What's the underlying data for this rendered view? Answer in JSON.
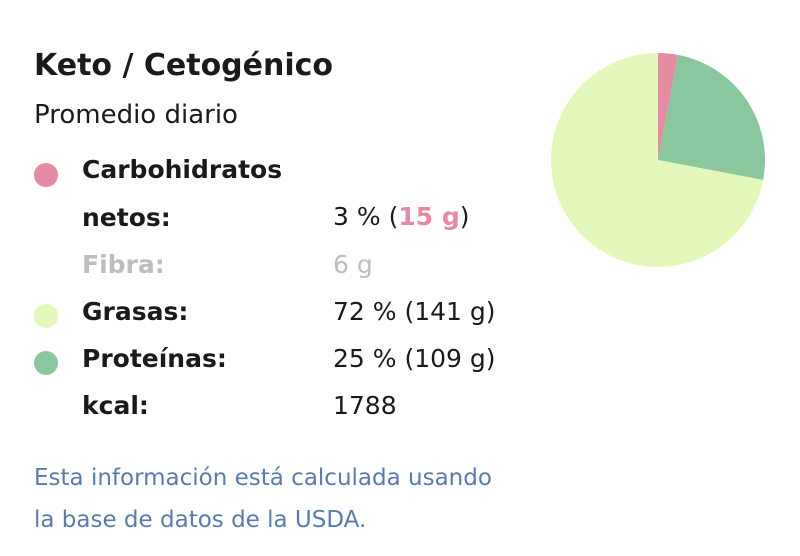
{
  "header": {
    "title": "Keto / Cetogénico",
    "subtitle": "Promedio diario"
  },
  "chart_data": {
    "type": "pie",
    "categories": [
      "Carbohidratos netos:",
      "Proteínas:",
      "Grasas:"
    ],
    "values": [
      3,
      25,
      72
    ],
    "value_labels": [
      "3 %",
      "25 %",
      "72 %"
    ],
    "colors": [
      "#e48aa2",
      "#8ac79f",
      "#e5f8bb"
    ]
  },
  "labels": {
    "open": "(",
    "close": ")",
    "grams": [
      "15 g",
      "109 g",
      "141 g"
    ],
    "fiber": "Fibra:",
    "fiber_grams": "6 g",
    "kcal": "kcal:",
    "kcal_value": 1788
  },
  "footer": [
    "Esta información está calculada usando",
    "la base de datos de la USDA."
  ]
}
